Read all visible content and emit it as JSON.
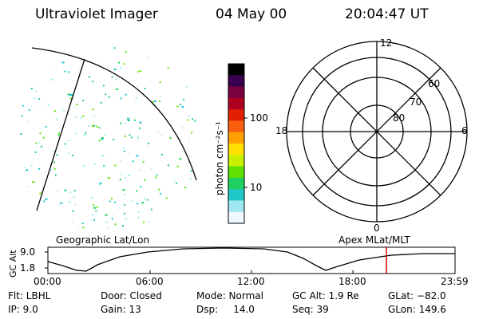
{
  "header": {
    "instrument": "Ultraviolet Imager",
    "date": "04 May 00",
    "time": "20:04:47 UT"
  },
  "colorbar": {
    "ticks": [
      "100",
      "10"
    ],
    "unit": "photon cm⁻²s⁻¹",
    "colors": [
      "#000000",
      "#3a0050",
      "#7a0040",
      "#b00020",
      "#e02000",
      "#f86010",
      "#ffa000",
      "#ffe000",
      "#c8f000",
      "#60e000",
      "#20d060",
      "#20c8c8",
      "#a0e8f0",
      "#f0f8ff"
    ]
  },
  "polar_plot": {
    "mlt_labels": [
      "12",
      "18",
      "6",
      "0"
    ],
    "lat_labels": [
      "60",
      "70",
      "80"
    ]
  },
  "captions": {
    "left": "Geographic Lat/Lon",
    "right": "Apex MLat/MLT"
  },
  "altitude_plot": {
    "ylabel": "GC Alt",
    "y_ticks": [
      "9.0",
      "1.8"
    ],
    "x_ticks": [
      "00:00",
      "06:00",
      "12:00",
      "18:00",
      "23:59"
    ],
    "marker_color": "#e00000"
  },
  "footer": {
    "flt": "Flt:  LBHL",
    "ip": "IP:  9.0",
    "door": "Door: Closed",
    "gain": "Gain: 13",
    "mode": "Mode: Normal",
    "dsp": "Dsp:     14.0",
    "gcalt": "GC Alt: 1.9 Re",
    "seq": "Seq: 39",
    "glat": "GLat: −82.0",
    "glon": "GLon: 149.6"
  }
}
